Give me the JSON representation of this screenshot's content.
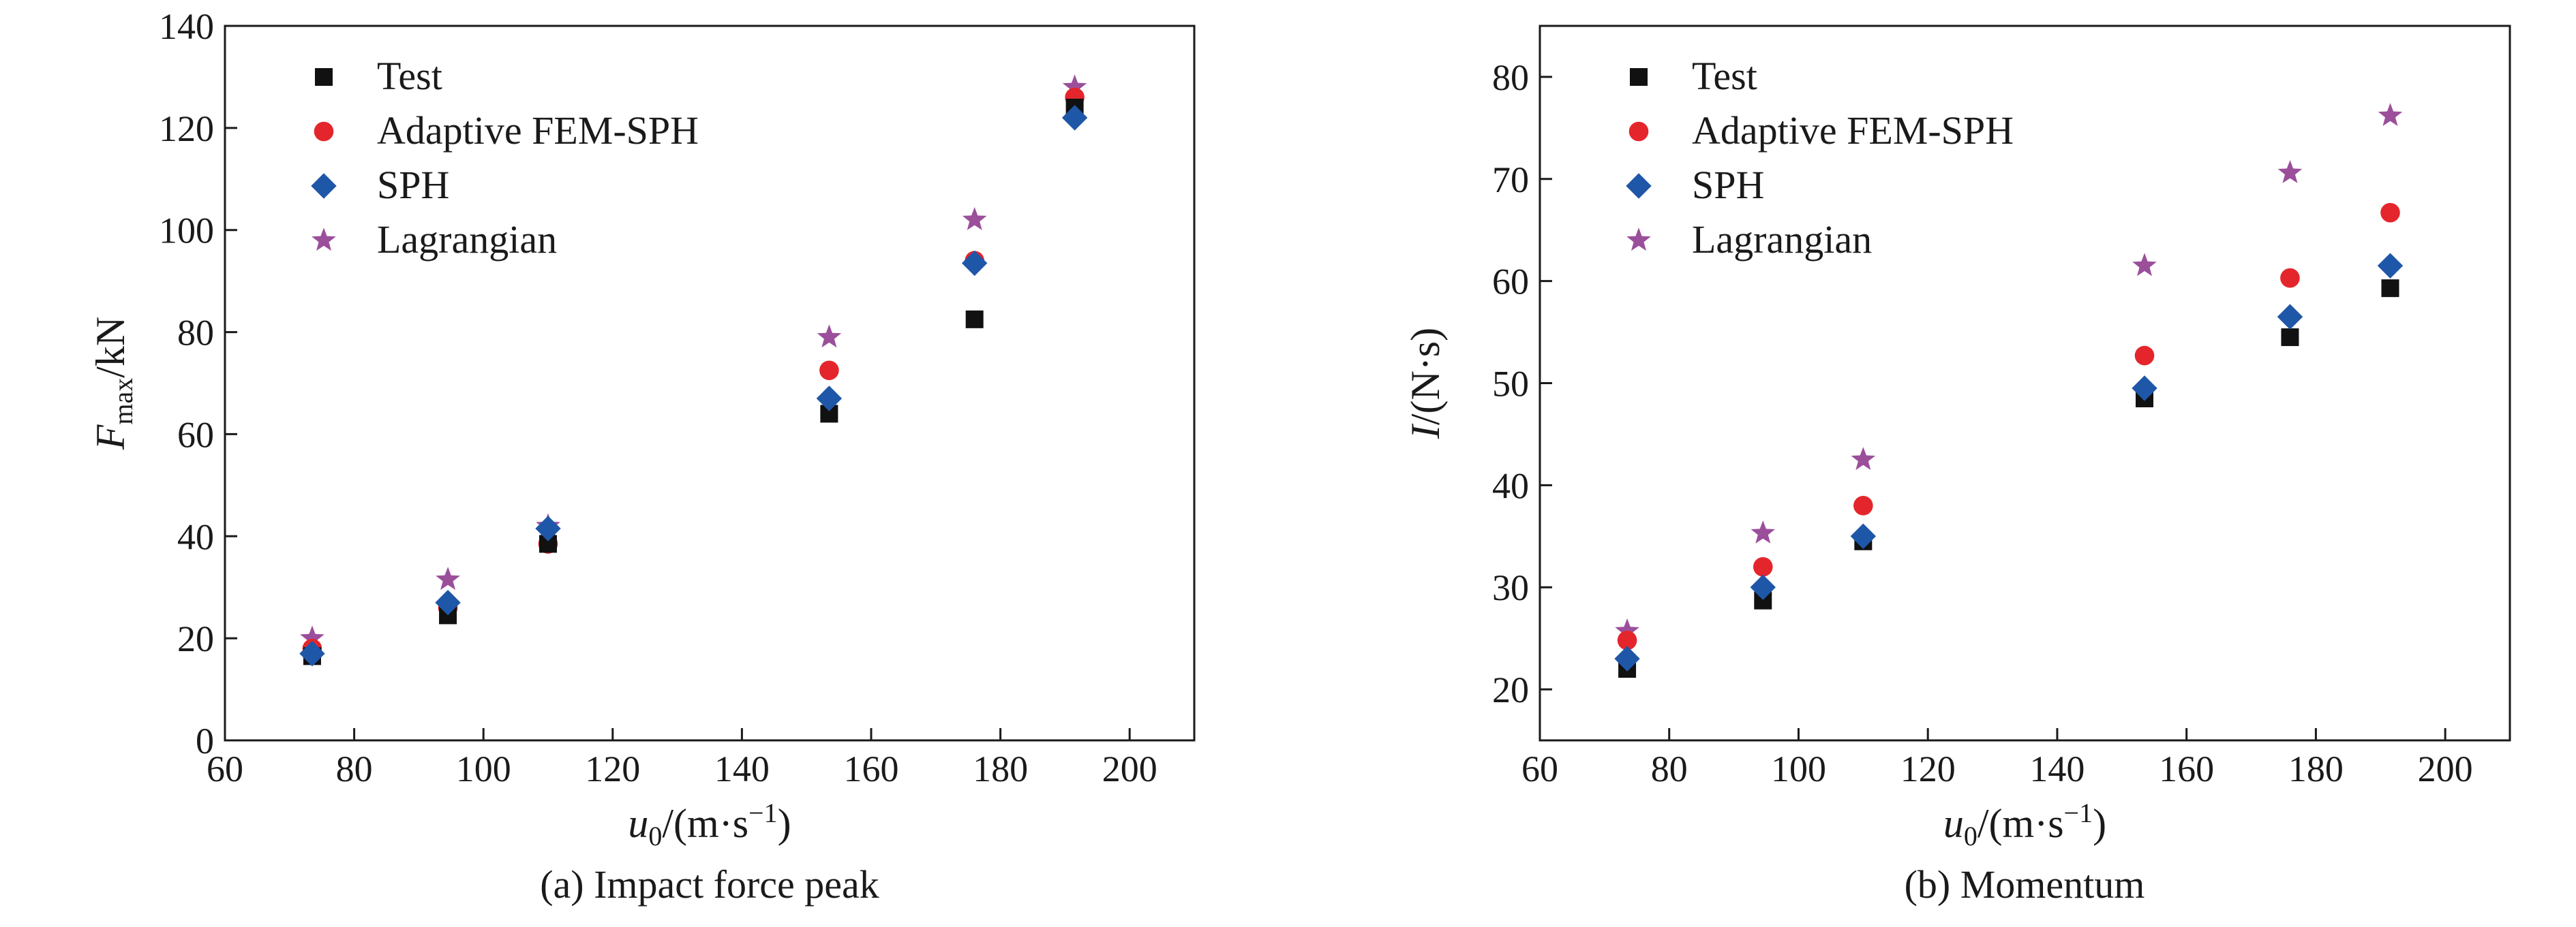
{
  "colors": {
    "Test": "#111111",
    "Adaptive FEM-SPH": "#e4262c",
    "SPH": "#1f57a8",
    "Lagrangian": "#9b4f9b"
  },
  "markers": {
    "Test": "square",
    "Adaptive FEM-SPH": "circle",
    "SPH": "diamond",
    "Lagrangian": "star"
  },
  "chart_data": [
    {
      "type": "scatter",
      "caption": "(a)  Impact force peak",
      "xlabel": {
        "var": "u",
        "sub": "0",
        "unit": "/(m·s",
        "sup": "−1",
        "close": ")"
      },
      "ylabel": {
        "var": "F",
        "sub": "max",
        "unit": "/kN"
      },
      "xlim": [
        60,
        210
      ],
      "ylim": [
        0,
        140
      ],
      "xticks": [
        60,
        80,
        100,
        120,
        140,
        160,
        180,
        200
      ],
      "yticks": [
        0,
        20,
        40,
        60,
        80,
        100,
        120,
        140
      ],
      "x": [
        73.5,
        94.5,
        110,
        153.5,
        176,
        191.5
      ],
      "series": [
        {
          "name": "Test",
          "values": [
            16.5,
            24.5,
            38.5,
            64,
            82.5,
            124
          ]
        },
        {
          "name": "Adaptive FEM-SPH",
          "values": [
            18,
            26,
            38.5,
            72.5,
            94,
            126
          ]
        },
        {
          "name": "SPH",
          "values": [
            17,
            27,
            41.5,
            67,
            93.5,
            122
          ]
        },
        {
          "name": "Lagrangian",
          "values": [
            20,
            31.5,
            42,
            79,
            102,
            128
          ]
        }
      ],
      "legend": "top-left"
    },
    {
      "type": "scatter",
      "caption": "(b)  Momentum",
      "xlabel": {
        "var": "u",
        "sub": "0",
        "unit": "/(m·s",
        "sup": "−1",
        "close": ")"
      },
      "ylabel": {
        "var": "I",
        "sub": "",
        "unit": "/(N·s)"
      },
      "xlim": [
        60,
        210
      ],
      "ylim": [
        15,
        85
      ],
      "xticks": [
        60,
        80,
        100,
        120,
        140,
        160,
        180,
        200
      ],
      "yticks": [
        20,
        30,
        40,
        50,
        60,
        70,
        80
      ],
      "x": [
        73.5,
        94.5,
        110,
        153.5,
        176,
        191.5
      ],
      "series": [
        {
          "name": "Test",
          "values": [
            22,
            28.7,
            34.5,
            48.5,
            54.5,
            59.3
          ]
        },
        {
          "name": "Adaptive FEM-SPH",
          "values": [
            24.8,
            32,
            38,
            52.7,
            60.3,
            66.7
          ]
        },
        {
          "name": "SPH",
          "values": [
            23,
            30,
            35,
            49.5,
            56.5,
            61.5
          ]
        },
        {
          "name": "Lagrangian",
          "values": [
            25.7,
            35.3,
            42.5,
            61.5,
            70.6,
            76.2
          ]
        }
      ],
      "legend": "top-left"
    }
  ]
}
